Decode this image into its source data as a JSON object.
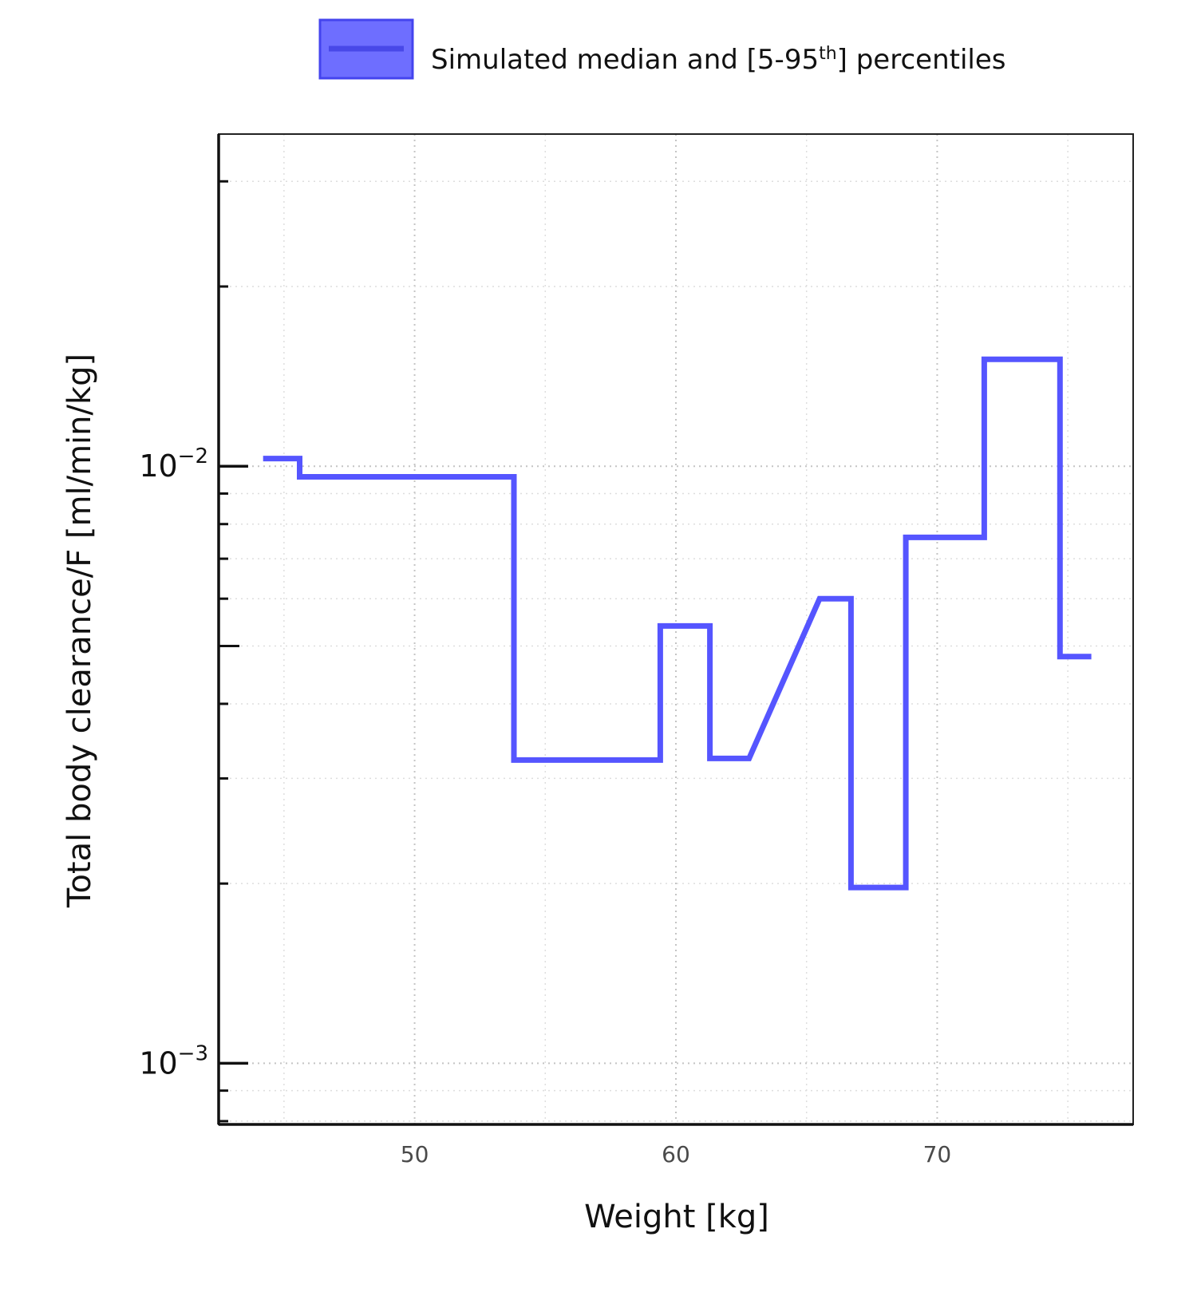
{
  "chart_data": {
    "type": "line",
    "step": true,
    "legend": {
      "label_main": "Simulated median and [5-95",
      "label_sup": "th",
      "label_end": "] percentiles",
      "placement": "top-center"
    },
    "xlabel": "Weight [kg]",
    "ylabel": "Total body clearance/F [ml/min/kg]",
    "xlim": [
      42.5,
      77.5
    ],
    "ylim": [
      0.00079,
      0.036
    ],
    "yscale": "log",
    "grid": true,
    "x_ticks": [
      {
        "value": 50,
        "label": "50"
      },
      {
        "value": 60,
        "label": "60"
      },
      {
        "value": 70,
        "label": "70"
      }
    ],
    "y_ticks": [
      {
        "value": 0.01,
        "base": "10",
        "exp": "−2"
      },
      {
        "value": 0.001,
        "base": "10",
        "exp": "−3"
      }
    ],
    "series": [
      {
        "color": "#5555ff",
        "x": [
          44.2,
          45.6,
          45.6,
          53.8,
          53.8,
          59.4,
          59.4,
          61.3,
          61.3,
          62.8,
          65.5,
          66.7,
          66.7,
          68.8,
          68.8,
          71.8,
          71.8,
          74.7,
          74.7,
          75.9
        ],
        "y": [
          0.0103,
          0.0103,
          0.0096,
          0.0096,
          0.00322,
          0.00322,
          0.0054,
          0.0054,
          0.00324,
          0.00324,
          0.006,
          0.006,
          0.00197,
          0.00197,
          0.0076,
          0.0076,
          0.0151,
          0.0151,
          0.0048,
          0.0048
        ]
      }
    ]
  }
}
